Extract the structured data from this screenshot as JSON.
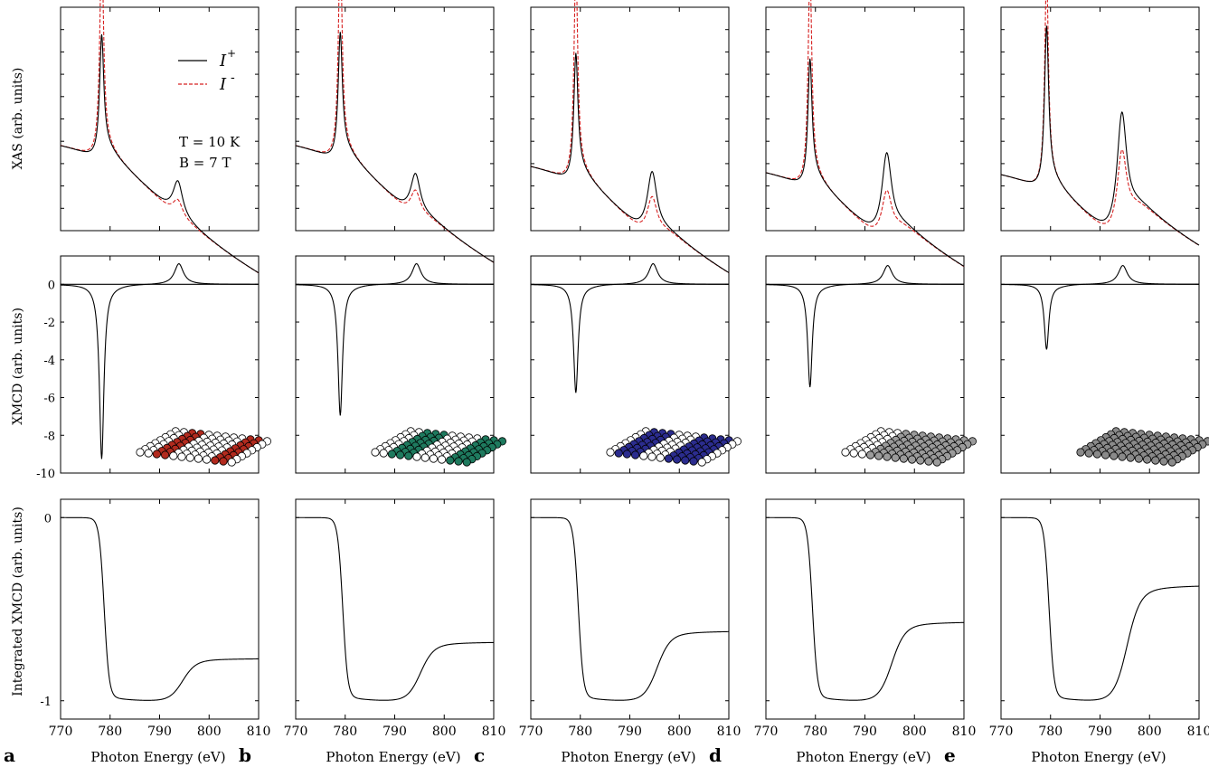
{
  "figure": {
    "ylabels": {
      "xas": "XAS  (arb. units)",
      "xmcd": "XMCD  (arb. units)",
      "int": "Integrated XMCD (arb. units)"
    },
    "xlabel": "Photon Energy (eV)",
    "xticks": [
      770,
      780,
      790,
      800,
      810
    ],
    "xmcd_yticks": [
      "0",
      "-2",
      "-4",
      "-6",
      "-8",
      "-10"
    ],
    "int_yticks": [
      "0",
      "-1"
    ],
    "legend": {
      "plus": "I",
      "plus_sup": "+",
      "minus": "I",
      "minus_sup": "-"
    },
    "conditions": {
      "T": "T = 10 K",
      "B": "B = 7 T"
    }
  },
  "chart_data": [
    {
      "panel": "a",
      "type": "line",
      "atom_color": "#b22a1e",
      "xlabel": "Photon Energy (eV)",
      "xlim": [
        770,
        810
      ],
      "xas": {
        "ylabel": "XAS  (arb. units)",
        "series": [
          {
            "name": "I+",
            "color": "#000000",
            "style": "solid",
            "L3": 0.55,
            "L2": 0.17
          },
          {
            "name": "I-",
            "color": "#d62020",
            "style": "dashed",
            "L3": 1.0,
            "L2": 0.08
          }
        ],
        "pre_edge": 0.37,
        "post_edge": 0.12,
        "L3_energy": 778.3,
        "L2_energy": 793.7
      },
      "xmcd": {
        "ylabel": "XMCD  (arb. units)",
        "ylim": [
          -10,
          1.5
        ],
        "L3_min": -9.2,
        "L2_max": 1.1
      },
      "integrated": {
        "ylabel": "Integrated XMCD (arb. units)",
        "ylim": [
          -1.1,
          0.1
        ],
        "plateau": -0.98,
        "final": -0.77
      }
    },
    {
      "panel": "b",
      "type": "line",
      "atom_color": "#1e7a5e",
      "xlabel": "Photon Energy (eV)",
      "xlim": [
        770,
        810
      ],
      "xas": {
        "series": [
          {
            "name": "I+",
            "color": "#000000",
            "style": "solid",
            "L3": 0.57,
            "L2": 0.2
          },
          {
            "name": "I-",
            "color": "#d62020",
            "style": "dashed",
            "L3": 1.0,
            "L2": 0.12
          }
        ],
        "pre_edge": 0.37,
        "post_edge": 0.17,
        "L3_energy": 779.0,
        "L2_energy": 794.2
      },
      "xmcd": {
        "ylim": [
          -10,
          1.5
        ],
        "L3_min": -6.9,
        "L2_max": 1.1
      },
      "integrated": {
        "ylim": [
          -1.1,
          0.1
        ],
        "plateau": -0.98,
        "final": -0.68
      }
    },
    {
      "panel": "c",
      "type": "line",
      "atom_color": "#2b2c8e",
      "xlabel": "Photon Energy (eV)",
      "xlim": [
        770,
        810
      ],
      "xas": {
        "series": [
          {
            "name": "I+",
            "color": "#000000",
            "style": "solid",
            "L3": 0.57,
            "L2": 0.3
          },
          {
            "name": "I-",
            "color": "#d62020",
            "style": "dashed",
            "L3": 1.0,
            "L2": 0.18
          }
        ],
        "pre_edge": 0.27,
        "post_edge": 0.22,
        "L3_energy": 779.1,
        "L2_energy": 794.5
      },
      "xmcd": {
        "ylim": [
          -10,
          1.5
        ],
        "L3_min": -5.7,
        "L2_max": 1.1
      },
      "integrated": {
        "ylim": [
          -1.1,
          0.1
        ],
        "plateau": -0.98,
        "final": -0.62
      }
    },
    {
      "panel": "d",
      "type": "line",
      "atom_color": "#9b9b9b",
      "xlabel": "Photon Energy (eV)",
      "xlim": [
        770,
        810
      ],
      "xas": {
        "series": [
          {
            "name": "I+",
            "color": "#000000",
            "style": "solid",
            "L3": 0.57,
            "L2": 0.4
          },
          {
            "name": "I-",
            "color": "#d62020",
            "style": "dashed",
            "L3": 1.0,
            "L2": 0.22
          }
        ],
        "pre_edge": 0.24,
        "post_edge": 0.28,
        "L3_energy": 778.9,
        "L2_energy": 794.4
      },
      "xmcd": {
        "ylim": [
          -10,
          1.5
        ],
        "L3_min": -5.4,
        "L2_max": 1.0
      },
      "integrated": {
        "ylim": [
          -1.1,
          0.1
        ],
        "plateau": -0.98,
        "final": -0.57
      }
    },
    {
      "panel": "e",
      "type": "line",
      "atom_color": "#8a8a8a",
      "xlabel": "Photon Energy (eV)",
      "xlim": [
        770,
        810
      ],
      "xas": {
        "series": [
          {
            "name": "I+",
            "color": "#000000",
            "style": "solid",
            "L3": 0.74,
            "L2": 0.57
          },
          {
            "name": "I-",
            "color": "#d62020",
            "style": "dashed",
            "L3": 1.0,
            "L2": 0.39
          }
        ],
        "pre_edge": 0.23,
        "post_edge": 0.39,
        "L3_energy": 779.2,
        "L2_energy": 794.4
      },
      "xmcd": {
        "ylim": [
          -10,
          1.5
        ],
        "L3_min": -3.4,
        "L2_max": 1.0
      },
      "integrated": {
        "ylim": [
          -1.1,
          0.1
        ],
        "plateau": -0.98,
        "final": -0.37
      }
    }
  ]
}
